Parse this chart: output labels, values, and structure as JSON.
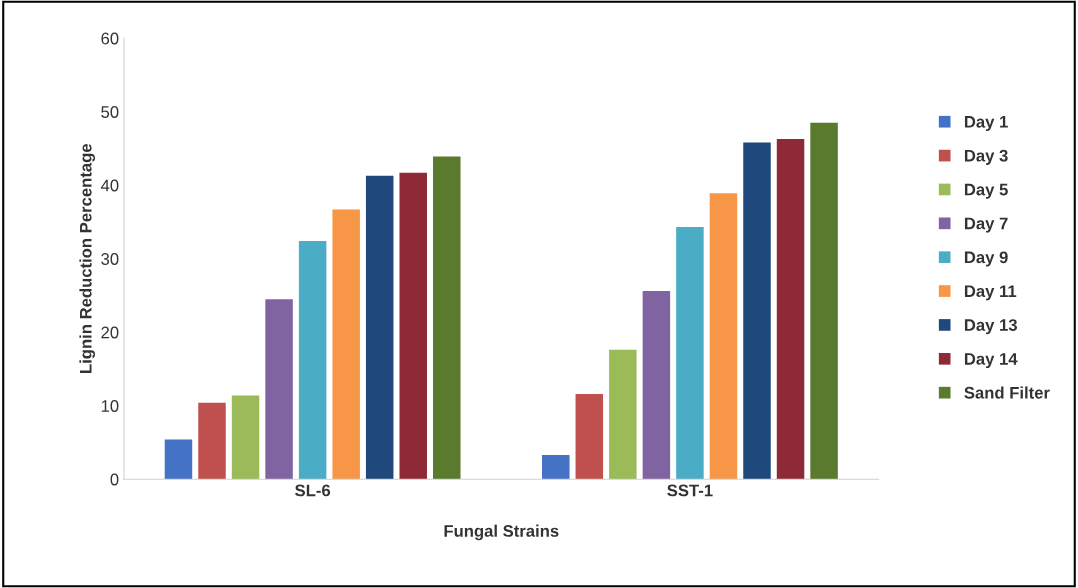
{
  "chart_data": {
    "type": "bar",
    "xlabel": "Fungal Strains",
    "ylabel": "Lignin Reduction Percentage",
    "categories": [
      "SL-6",
      "SST-1"
    ],
    "series": [
      {
        "name": "Day 1",
        "color": "#4472c4",
        "values": [
          5.4,
          3.3
        ]
      },
      {
        "name": "Day 3",
        "color": "#c0504d",
        "values": [
          10.4,
          11.6
        ]
      },
      {
        "name": "Day 5",
        "color": "#9bbb59",
        "values": [
          11.4,
          17.6
        ]
      },
      {
        "name": "Day 7",
        "color": "#8064a2",
        "values": [
          24.5,
          25.6
        ]
      },
      {
        "name": "Day 9",
        "color": "#4bacc6",
        "values": [
          32.4,
          34.3
        ]
      },
      {
        "name": "Day 11",
        "color": "#f79646",
        "values": [
          36.7,
          38.9
        ]
      },
      {
        "name": "Day 13",
        "color": "#1f497d",
        "values": [
          41.3,
          45.8
        ]
      },
      {
        "name": "Day 14",
        "color": "#8e2a35",
        "values": [
          41.7,
          46.3
        ]
      },
      {
        "name": "Sand Filter",
        "color": "#5a7a2e",
        "values": [
          43.9,
          48.5
        ]
      }
    ],
    "ylim": [
      0,
      60
    ],
    "yticks": [
      0,
      10,
      20,
      30,
      40,
      50,
      60
    ],
    "grid": false,
    "legend": "right"
  }
}
